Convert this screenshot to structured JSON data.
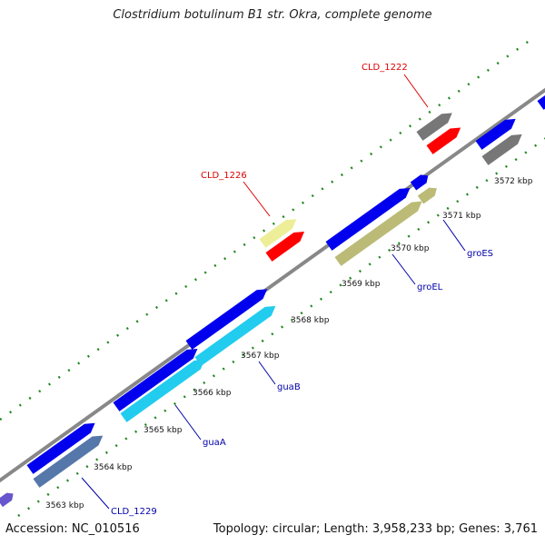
{
  "title": "Clostridium botulinum B1 str. Okra, complete genome",
  "footer": {
    "accession": "Accession: NC_010516",
    "summary": "Topology: circular; Length: 3,958,233 bp; Genes: 3,761"
  },
  "ticks": [
    "3563 kbp",
    "3564 kbp",
    "3565 kbp",
    "3566 kbp",
    "3567 kbp",
    "3568 kbp",
    "3569 kbp",
    "3570 kbp",
    "3571 kbp",
    "3572 kbp"
  ],
  "gene_labels": [
    {
      "text": "CLD_1222",
      "color": "#dd0000"
    },
    {
      "text": "CLD_1226",
      "color": "#dd0000"
    },
    {
      "text": "groES",
      "color": "#0000aa"
    },
    {
      "text": "groEL",
      "color": "#0000aa"
    },
    {
      "text": "guaB",
      "color": "#0000aa"
    },
    {
      "text": "guaA",
      "color": "#0000aa"
    },
    {
      "text": "CLD_1229",
      "color": "#0000aa"
    }
  ],
  "colors": {
    "backbone": "#888888",
    "tick_dots": "#228822",
    "blue": "#0000ee",
    "cyan": "#22ccee",
    "steel": "#5577aa",
    "khaki": "#bbbb77",
    "pale_yellow": "#eeee99",
    "red": "#ff0000",
    "gray": "#777777",
    "purple": "#6655cc"
  }
}
